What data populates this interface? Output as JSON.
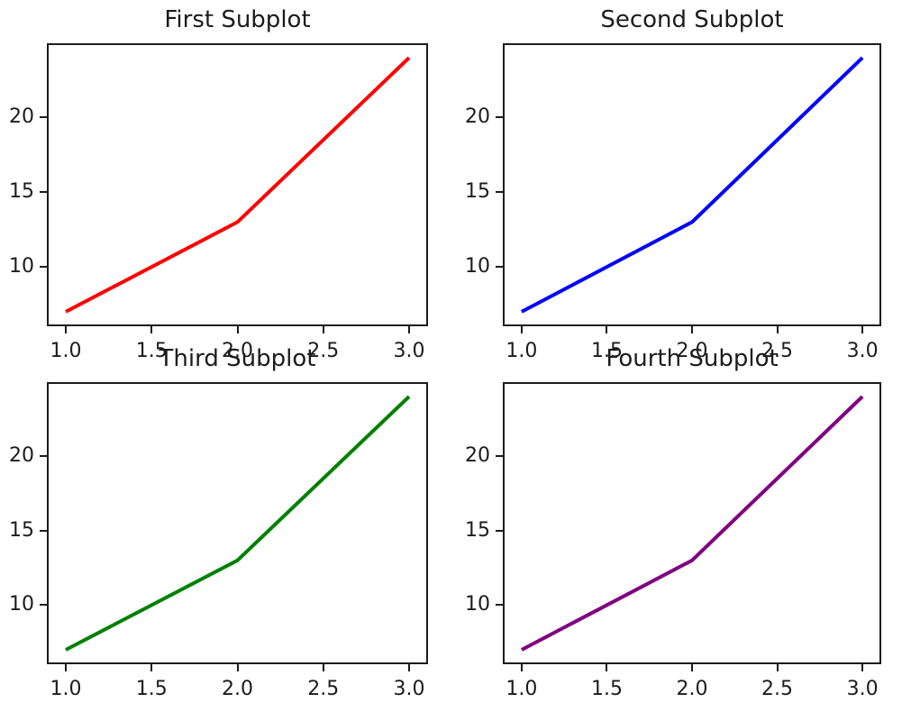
{
  "figure": {
    "background": "#ffffff",
    "axes_edge_color": "#1c1c1c",
    "text_color": "#1c1c1c"
  },
  "chart_data": [
    {
      "type": "line",
      "title": "First Subplot",
      "color": "#ff0000",
      "x": [
        1,
        2,
        3
      ],
      "y": [
        7,
        13,
        24
      ],
      "xlim": [
        0.9,
        3.1
      ],
      "ylim": [
        6.15,
        24.85
      ],
      "xticks": [
        "1.0",
        "1.5",
        "2.0",
        "2.5",
        "3.0"
      ],
      "xtick_values": [
        1.0,
        1.5,
        2.0,
        2.5,
        3.0
      ],
      "yticks": [
        "10",
        "15",
        "20"
      ],
      "ytick_values": [
        10,
        15,
        20
      ],
      "grid": false,
      "legend": null
    },
    {
      "type": "line",
      "title": "Second Subplot",
      "color": "#0000ff",
      "x": [
        1,
        2,
        3
      ],
      "y": [
        7,
        13,
        24
      ],
      "xlim": [
        0.9,
        3.1
      ],
      "ylim": [
        6.15,
        24.85
      ],
      "xticks": [
        "1.0",
        "1.5",
        "2.0",
        "2.5",
        "3.0"
      ],
      "xtick_values": [
        1.0,
        1.5,
        2.0,
        2.5,
        3.0
      ],
      "yticks": [
        "10",
        "15",
        "20"
      ],
      "ytick_values": [
        10,
        15,
        20
      ],
      "grid": false,
      "legend": null
    },
    {
      "type": "line",
      "title": "Third Subplot",
      "color": "#008000",
      "x": [
        1,
        2,
        3
      ],
      "y": [
        7,
        13,
        24
      ],
      "xlim": [
        0.9,
        3.1
      ],
      "ylim": [
        6.15,
        24.85
      ],
      "xticks": [
        "1.0",
        "1.5",
        "2.0",
        "2.5",
        "3.0"
      ],
      "xtick_values": [
        1.0,
        1.5,
        2.0,
        2.5,
        3.0
      ],
      "yticks": [
        "10",
        "15",
        "20"
      ],
      "ytick_values": [
        10,
        15,
        20
      ],
      "grid": false,
      "legend": null
    },
    {
      "type": "line",
      "title": "Fourth Subplot",
      "color": "#800080",
      "x": [
        1,
        2,
        3
      ],
      "y": [
        7,
        13,
        24
      ],
      "xlim": [
        0.9,
        3.1
      ],
      "ylim": [
        6.15,
        24.85
      ],
      "xticks": [
        "1.0",
        "1.5",
        "2.0",
        "2.5",
        "3.0"
      ],
      "xtick_values": [
        1.0,
        1.5,
        2.0,
        2.5,
        3.0
      ],
      "yticks": [
        "10",
        "15",
        "20"
      ],
      "ytick_values": [
        10,
        15,
        20
      ],
      "grid": false,
      "legend": null
    }
  ]
}
